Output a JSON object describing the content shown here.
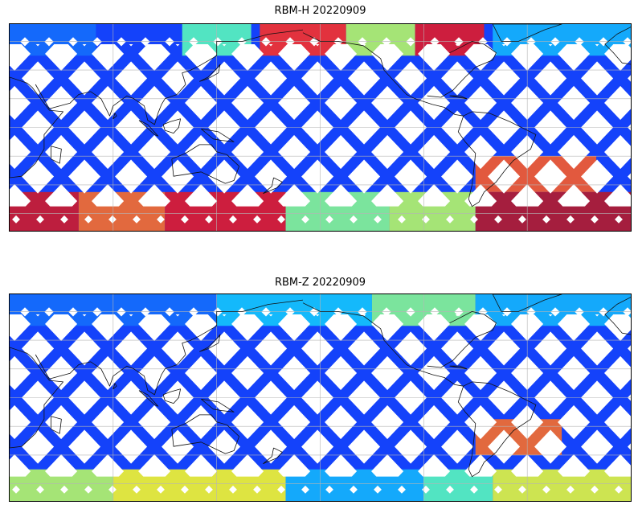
{
  "maps": [
    {
      "title": "RBM-H 20220909",
      "palette": "jet",
      "bands": [
        {
          "lat_from": 50,
          "lat_to": 72,
          "lon_from": 20,
          "lon_to": 70,
          "level": 0.22
        },
        {
          "lat_from": 50,
          "lat_to": 72,
          "lon_from": 120,
          "lon_to": 160,
          "level": 0.45
        },
        {
          "lat_from": 50,
          "lat_to": 72,
          "lon_from": 165,
          "lon_to": 215,
          "level": 0.85
        },
        {
          "lat_from": 50,
          "lat_to": 72,
          "lon_from": 215,
          "lon_to": 255,
          "level": 0.55
        },
        {
          "lat_from": 50,
          "lat_to": 72,
          "lon_from": 255,
          "lon_to": 295,
          "level": 0.9
        },
        {
          "lat_from": 50,
          "lat_to": 72,
          "lon_from": 300,
          "lon_to": 380,
          "level": 0.3
        },
        {
          "lat_from": -72,
          "lat_to": -45,
          "lon_from": 20,
          "lon_to": 60,
          "level": 0.92
        },
        {
          "lat_from": -72,
          "lat_to": -45,
          "lon_from": 60,
          "lon_to": 110,
          "level": 0.78
        },
        {
          "lat_from": -72,
          "lat_to": -45,
          "lon_from": 110,
          "lon_to": 180,
          "level": 0.9
        },
        {
          "lat_from": -72,
          "lat_to": -45,
          "lon_from": 180,
          "lon_to": 240,
          "level": 0.5
        },
        {
          "lat_from": -72,
          "lat_to": -45,
          "lon_from": 240,
          "lon_to": 290,
          "level": 0.55
        },
        {
          "lat_from": -72,
          "lat_to": -45,
          "lon_from": 290,
          "lon_to": 380,
          "level": 0.95
        },
        {
          "lat_from": -45,
          "lat_to": -20,
          "lon_from": 290,
          "lon_to": 360,
          "level": 0.8
        }
      ]
    },
    {
      "title": "RBM-Z 20220909",
      "palette": "jet",
      "bands": [
        {
          "lat_from": 50,
          "lat_to": 72,
          "lon_from": 20,
          "lon_to": 140,
          "level": 0.22
        },
        {
          "lat_from": 50,
          "lat_to": 72,
          "lon_from": 140,
          "lon_to": 230,
          "level": 0.32
        },
        {
          "lat_from": 50,
          "lat_to": 72,
          "lon_from": 230,
          "lon_to": 290,
          "level": 0.5
        },
        {
          "lat_from": 50,
          "lat_to": 72,
          "lon_from": 290,
          "lon_to": 380,
          "level": 0.3
        },
        {
          "lat_from": -72,
          "lat_to": -50,
          "lon_from": 20,
          "lon_to": 80,
          "level": 0.55
        },
        {
          "lat_from": -72,
          "lat_to": -50,
          "lon_from": 80,
          "lon_to": 180,
          "level": 0.62
        },
        {
          "lat_from": -72,
          "lat_to": -50,
          "lon_from": 180,
          "lon_to": 260,
          "level": 0.3
        },
        {
          "lat_from": -72,
          "lat_to": -50,
          "lon_from": 260,
          "lon_to": 300,
          "level": 0.45
        },
        {
          "lat_from": -72,
          "lat_to": -50,
          "lon_from": 300,
          "lon_to": 380,
          "level": 0.6
        },
        {
          "lat_from": -40,
          "lat_to": -15,
          "lon_from": 290,
          "lon_to": 340,
          "level": 0.78
        }
      ]
    }
  ],
  "map_extent": {
    "lon_min": 20,
    "lon_max": 380,
    "lat_min": -72,
    "lat_max": 72
  },
  "gridlines": {
    "lon_step": 60,
    "lat_step": 20
  }
}
